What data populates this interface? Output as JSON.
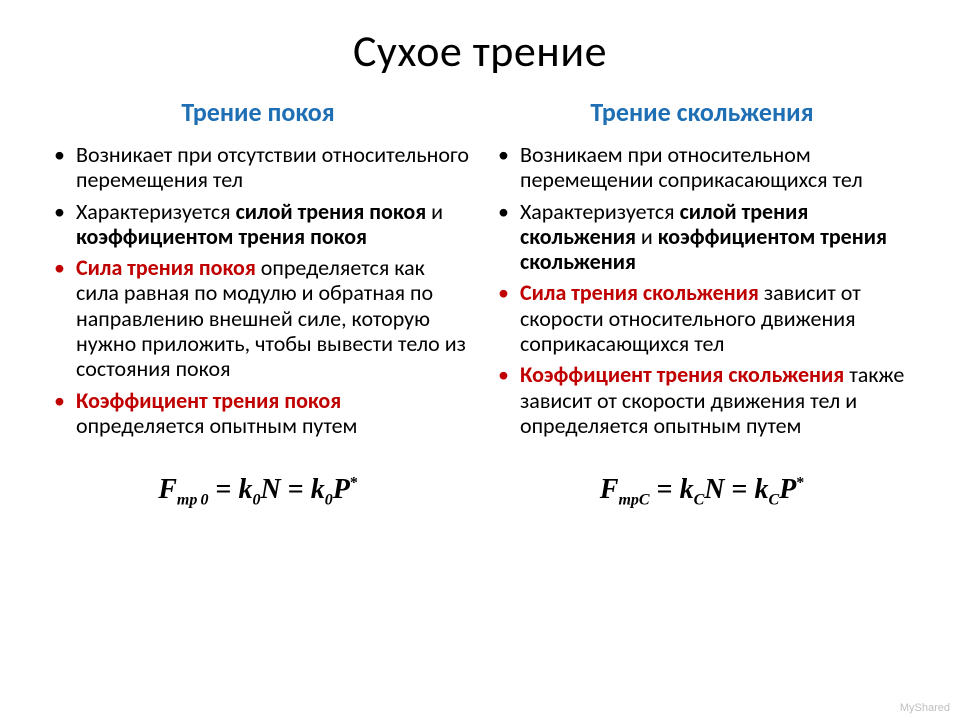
{
  "title": "Сухое трение",
  "subhead_color": "#1f6fb5",
  "emph_color": "#c00000",
  "left": {
    "subhead": "Трение покоя",
    "items": [
      {
        "html": "Возникает при отсутствии относительного перемещения тел",
        "red": false
      },
      {
        "html": "Характеризуется <span class='bold'>силой трения покоя</span> и <span class='bold'>коэффициентом трения покоя</span>",
        "red": false
      },
      {
        "html": "<span class='emph-red'>Сила трения покоя</span> определяется как сила равная по модулю и обратная по направлению внешней силе, которую нужно приложить, чтобы вывести тело из состояния покоя",
        "red": true
      },
      {
        "html": "<span class='emph-red'>Коэффициент трения покоя</span> определяется опытным путем",
        "red": true
      }
    ],
    "formula_html": "F<sub>mp&thinsp;0</sub> <span class='rm'>=</span> k<sub>0</sub>N <span class='rm'>=</span> k<sub>0</sub>P<sup>*</sup>"
  },
  "right": {
    "subhead": "Трение скольжения",
    "items": [
      {
        "html": "Возникаем при относительном перемещении соприкасающихся тел",
        "red": false
      },
      {
        "html": "Характеризуется <span class='bold'>силой трения скольжения</span> и <span class='bold'>коэффициентом трения скольжения</span>",
        "red": false
      },
      {
        "html": "<span class='emph-red'>Сила трения скольжения</span> зависит от скорости относительного движения соприкасающихся тел",
        "red": true
      },
      {
        "html": "<span class='emph-red'>Коэффициент трения скольжения</span> также зависит от скорости движения тел и определяется опытным путем",
        "red": true
      }
    ],
    "formula_html": "F<sub>mpC</sub> <span class='rm'>=</span> k<sub>C</sub>N <span class='rm'>=</span> k<sub>C</sub>P<sup>*</sup>"
  },
  "watermark": "MyShared"
}
